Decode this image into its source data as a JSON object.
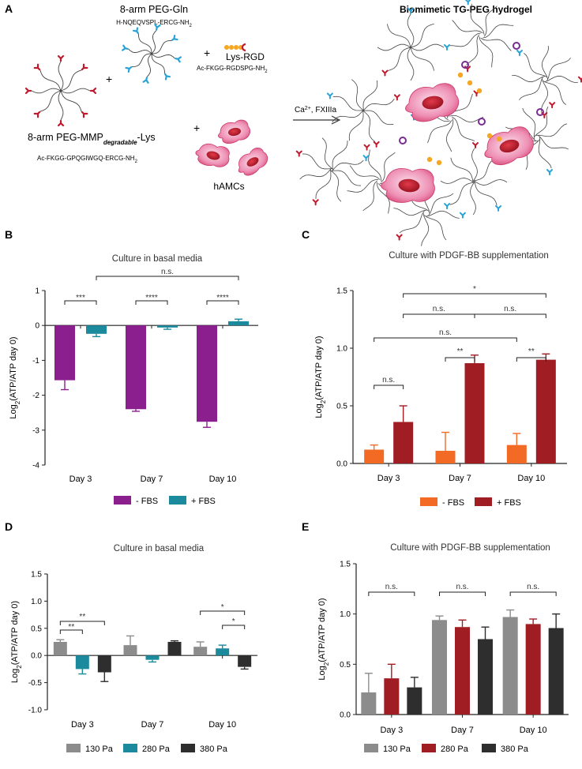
{
  "panel_a": {
    "letter": "A",
    "title": "Biomimetic TG-PEG hydrogel",
    "peg_gln_name": "8-arm PEG-Gln",
    "peg_gln_seq": "H-NQEQVSPL-ERCG-NH",
    "peg_gln_sub": "2",
    "peg_mmp_name_pre": "8-arm PEG-MMP",
    "peg_mmp_name_sub": "degradable",
    "peg_mmp_name_post": "-Lys",
    "peg_mmp_seq": "Ac-FKGG-GPQGIWGQ-ERCG-NH",
    "peg_mmp_sub": "2",
    "rgd_name": "Lys-RGD",
    "rgd_seq": "Ac-FKGG-RGDSPG-NH",
    "rgd_sub": "2",
    "cells": "hAMCs",
    "reaction": "Ca",
    "reaction_sup": "2+",
    "reaction_post": ", FXIIIa",
    "plus": "+"
  },
  "colors": {
    "purple": "#8b1f8e",
    "teal": "#1a8a9c",
    "orange": "#f26a24",
    "red": "#a11d24",
    "grey": "#8c8c8c",
    "dark": "#2e2e2e",
    "pink": "#e8679a",
    "nucleus": "#c0192c"
  },
  "chart_data": [
    {
      "panel": "B",
      "type": "bar",
      "title": "Culture in basal media",
      "ylabel": "Log2(ATP/ATP day 0)",
      "categories": [
        "Day 3",
        "Day 7",
        "Day 10"
      ],
      "ylim": [
        -4,
        1
      ],
      "yticks": [
        "-4",
        "-3",
        "-2",
        "-1",
        "0",
        "1"
      ],
      "series": [
        {
          "name": "- FBS",
          "color": "#8b1f8e",
          "values": [
            -1.57,
            -2.4,
            -2.76
          ],
          "errors": [
            0.27,
            0.06,
            0.16
          ]
        },
        {
          "name": "+ FBS",
          "color": "#1a8a9c",
          "values": [
            -0.24,
            -0.06,
            0.12
          ],
          "errors": [
            0.08,
            0.05,
            0.06
          ]
        }
      ],
      "annotations": [
        {
          "text": "***",
          "ref": "Day 3"
        },
        {
          "text": "****",
          "ref": "Day 7"
        },
        {
          "text": "****",
          "ref": "Day 10"
        },
        {
          "text": "n.s.",
          "ref": "+FBS Day 3 vs Day 10"
        }
      ]
    },
    {
      "panel": "C",
      "type": "bar",
      "title": "Culture with PDGF-BB supplementation",
      "ylabel": "Log2(ATP/ATP day 0)",
      "categories": [
        "Day 3",
        "Day 7",
        "Day 10"
      ],
      "ylim": [
        0,
        1.5
      ],
      "yticks": [
        "0.0",
        "0.5",
        "1.0",
        "1.5"
      ],
      "series": [
        {
          "name": "- FBS",
          "color": "#f26a24",
          "values": [
            0.12,
            0.11,
            0.16
          ],
          "errors": [
            0.04,
            0.16,
            0.1
          ]
        },
        {
          "name": "+ FBS",
          "color": "#a11d24",
          "values": [
            0.36,
            0.87,
            0.9
          ],
          "errors": [
            0.14,
            0.07,
            0.05
          ]
        }
      ],
      "annotations": [
        {
          "text": "n.s.",
          "ref": "Day 3"
        },
        {
          "text": "**",
          "ref": "Day 7"
        },
        {
          "text": "**",
          "ref": "Day 10"
        },
        {
          "text": "n.s.",
          "ref": "-FBS Day 3 vs Day 10"
        },
        {
          "text": "n.s.",
          "ref": "+FBS Day 3 vs Day 7"
        },
        {
          "text": "n.s.",
          "ref": "+FBS Day 7 vs Day 10"
        },
        {
          "text": "*",
          "ref": "+FBS Day 3 vs Day 10"
        }
      ]
    },
    {
      "panel": "D",
      "type": "bar",
      "title": "Culture in basal media",
      "ylabel": "Log2(ATP/ATP day 0)",
      "categories": [
        "Day 3",
        "Day 7",
        "Day 10"
      ],
      "ylim": [
        -1,
        1.5
      ],
      "yticks": [
        "-1.0",
        "-0.5",
        "0.0",
        "0.5",
        "1.0",
        "1.5"
      ],
      "series": [
        {
          "name": "130 Pa",
          "color": "#8c8c8c",
          "values": [
            0.25,
            0.19,
            0.16
          ],
          "errors": [
            0.04,
            0.17,
            0.09
          ]
        },
        {
          "name": "280 Pa",
          "color": "#1a8a9c",
          "values": [
            -0.25,
            -0.08,
            0.13
          ],
          "errors": [
            0.09,
            0.04,
            0.06
          ]
        },
        {
          "name": "380 Pa",
          "color": "#2e2e2e",
          "values": [
            -0.31,
            0.25,
            -0.21
          ],
          "errors": [
            0.17,
            0.02,
            0.04
          ]
        }
      ],
      "annotations": [
        {
          "text": "**",
          "ref": "Day 3 130 vs 280"
        },
        {
          "text": "**",
          "ref": "Day 3 130 vs 380"
        },
        {
          "text": "*",
          "ref": "Day 10 130 vs 380"
        },
        {
          "text": "*",
          "ref": "Day 10 280 vs 380"
        }
      ]
    },
    {
      "panel": "E",
      "type": "bar",
      "title": "Culture with PDGF-BB supplementation",
      "ylabel": "Log2(ATP/ATP day 0)",
      "categories": [
        "Day 3",
        "Day 7",
        "Day 10"
      ],
      "ylim": [
        0,
        1.5
      ],
      "yticks": [
        "0.0",
        "0.5",
        "1.0",
        "1.5"
      ],
      "series": [
        {
          "name": "130 Pa",
          "color": "#8c8c8c",
          "values": [
            0.22,
            0.94,
            0.97
          ],
          "errors": [
            0.19,
            0.04,
            0.07
          ]
        },
        {
          "name": "280 Pa",
          "color": "#a11d24",
          "values": [
            0.36,
            0.87,
            0.9
          ],
          "errors": [
            0.14,
            0.07,
            0.05
          ]
        },
        {
          "name": "380 Pa",
          "color": "#2e2e2e",
          "values": [
            0.27,
            0.75,
            0.86
          ],
          "errors": [
            0.1,
            0.12,
            0.14
          ]
        }
      ],
      "annotations": [
        {
          "text": "n.s.",
          "ref": "Day 3"
        },
        {
          "text": "n.s.",
          "ref": "Day 7"
        },
        {
          "text": "n.s.",
          "ref": "Day 10"
        }
      ]
    }
  ]
}
